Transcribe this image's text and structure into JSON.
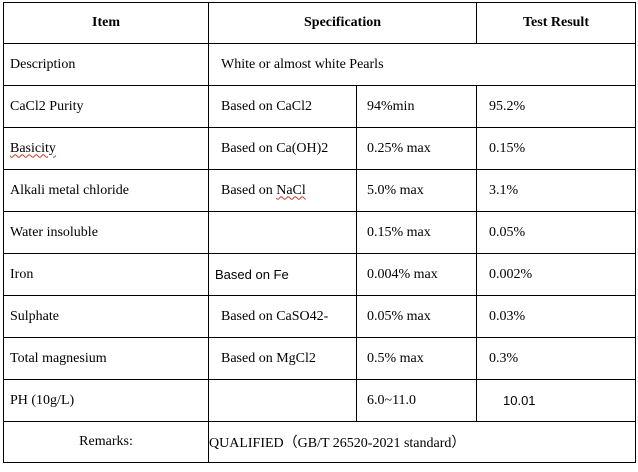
{
  "header": {
    "item": "Item",
    "specification": "Specification",
    "test_result": "Test Result"
  },
  "description": {
    "name": "Description",
    "value": "White or almost white Pearls"
  },
  "rows": [
    {
      "name": "CaCl2 Purity",
      "basis": "Based on CaCl2",
      "spec": "94%min",
      "result": "95.2%"
    },
    {
      "name": "Basicity",
      "basis": "Based on Ca(OH)2",
      "spec": "0.25% max",
      "result": "0.15%"
    },
    {
      "name": "Alkali metal chloride",
      "basis_prefix": "Based on ",
      "basis_word": "NaCl",
      "spec": "5.0% max",
      "result": "3.1%"
    },
    {
      "name": "Water insoluble",
      "basis": "",
      "spec": "0.15% max",
      "result": "0.05%"
    },
    {
      "name": "Iron",
      "basis": "Based on Fe",
      "spec": "0.004% max",
      "result": "0.002%"
    },
    {
      "name": "Sulphate",
      "basis": "Based on CaSO42-",
      "spec": "0.05% max",
      "result": "0.03%"
    },
    {
      "name": "Total magnesium",
      "basis": "Based on MgCl2",
      "spec": "0.5% max",
      "result": "0.3%"
    },
    {
      "name": "PH (10g/L)",
      "basis": "",
      "spec": "6.0~11.0",
      "result": "10.01"
    }
  ],
  "remarks": {
    "label": "Remarks:",
    "value": "QUALIFIED（GB/T 26520-2021 standard）"
  }
}
